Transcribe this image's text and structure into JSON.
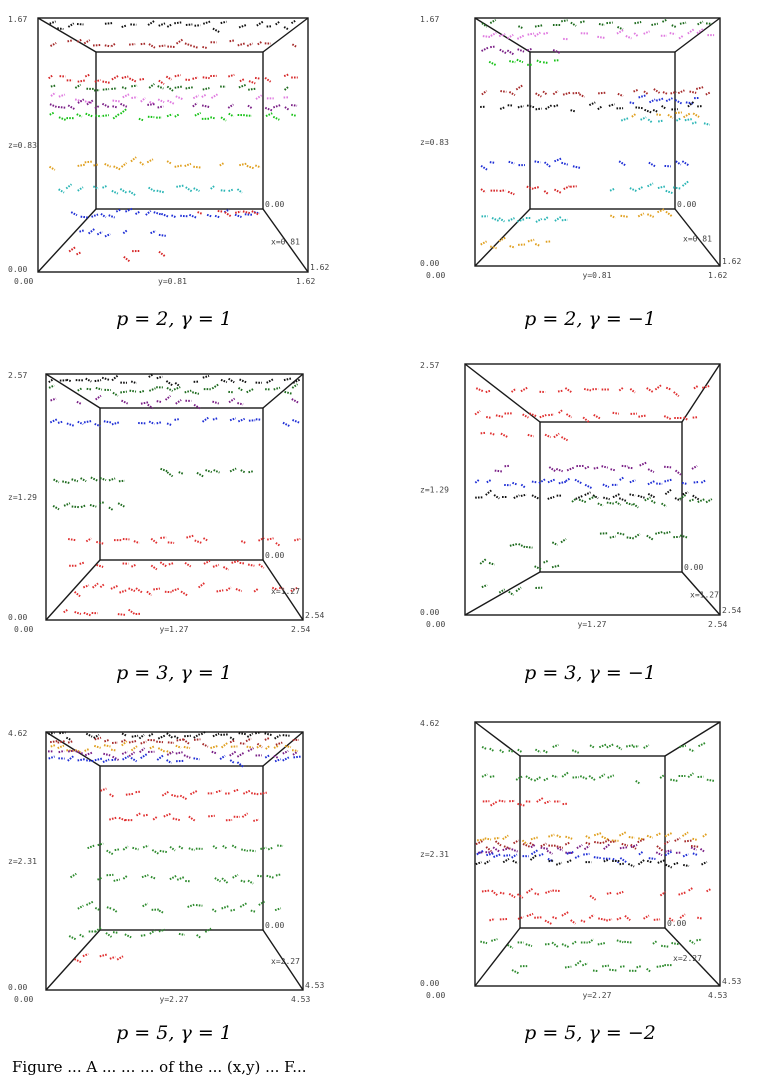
{
  "panels": [
    {
      "caption": "p = 2, γ = 1",
      "ticks": {
        "z_top": "1.67",
        "z_mid": "z=0.83",
        "origin": "0.00",
        "base_left": "0.00",
        "y_mid": "y=0.81",
        "x_end": "1.62",
        "x_end2": "1.62",
        "x_mid": "x=0.81",
        "inner": "0.00"
      },
      "palette": [
        "#d62728",
        "#1f2fd6",
        "#2ab5b5",
        "#e0a020",
        "#17c217",
        "#7a1f86",
        "#e07be0",
        "#1e6b1e",
        "#a52a2a",
        "#111111"
      ]
    },
    {
      "caption": "p = 2, γ = −1",
      "ticks": {
        "z_top": "1.67",
        "z_mid": "z=0.83",
        "origin": "0.00",
        "base_left": "0.00",
        "y_mid": "y=0.81",
        "x_end": "1.62",
        "x_end2": "1.62",
        "x_mid": "x=0.81",
        "inner": "0.00"
      },
      "palette": [
        "#d62728",
        "#1f2fd6",
        "#2ab5b5",
        "#e0a020",
        "#17c217",
        "#7a1f86",
        "#e07be0",
        "#1e6b1e",
        "#a52a2a",
        "#111111"
      ]
    },
    {
      "caption": "p = 3, γ = 1",
      "ticks": {
        "z_top": "2.57",
        "z_mid": "z=1.29",
        "origin": "0.00",
        "base_left": "0.00",
        "y_mid": "y=1.27",
        "x_end": "2.54",
        "x_end2": "2.54",
        "x_mid": "x=1.27",
        "inner": "0.00"
      },
      "palette": [
        "#e03030",
        "#1e6b1e",
        "#1f2fd6",
        "#7a1f86",
        "#111111"
      ]
    },
    {
      "caption": "p = 3, γ = −1",
      "ticks": {
        "z_top": "2.57",
        "z_mid": "z=1.29",
        "origin": "0.00",
        "base_left": "0.00",
        "y_mid": "y=1.27",
        "x_end": "2.54",
        "x_end2": "2.54",
        "x_mid": "x=1.27",
        "inner": "0.00"
      },
      "palette": [
        "#e03030",
        "#1e6b1e",
        "#1f2fd6",
        "#7a1f86",
        "#111111"
      ]
    },
    {
      "caption": "p = 5, γ = 1",
      "ticks": {
        "z_top": "4.62",
        "z_mid": "z=2.31",
        "origin": "0.00",
        "base_left": "0.00",
        "y_mid": "y=2.27",
        "x_end": "4.53",
        "x_end2": "4.53",
        "x_mid": "x=2.27",
        "inner": "0.00"
      },
      "palette": [
        "#e03030",
        "#2e8b2e",
        "#1f2fd6",
        "#7a1f86",
        "#e0a020",
        "#a52a2a",
        "#111111"
      ]
    },
    {
      "caption": "p = 5, γ = −2",
      "ticks": {
        "z_top": "4.62",
        "z_mid": "z=2.31",
        "origin": "0.00",
        "base_left": "0.00",
        "y_mid": "y=2.27",
        "x_end": "4.53",
        "x_end2": "4.53",
        "x_mid": "x=2.27",
        "inner": "0.00"
      },
      "palette": [
        "#e03030",
        "#2e8b2e",
        "#1f2fd6",
        "#7a1f86",
        "#e0a020",
        "#a52a2a",
        "#111111"
      ]
    }
  ],
  "footer_text": "Figure ... A ... ... ... of the ... (x,y) ... F..."
}
